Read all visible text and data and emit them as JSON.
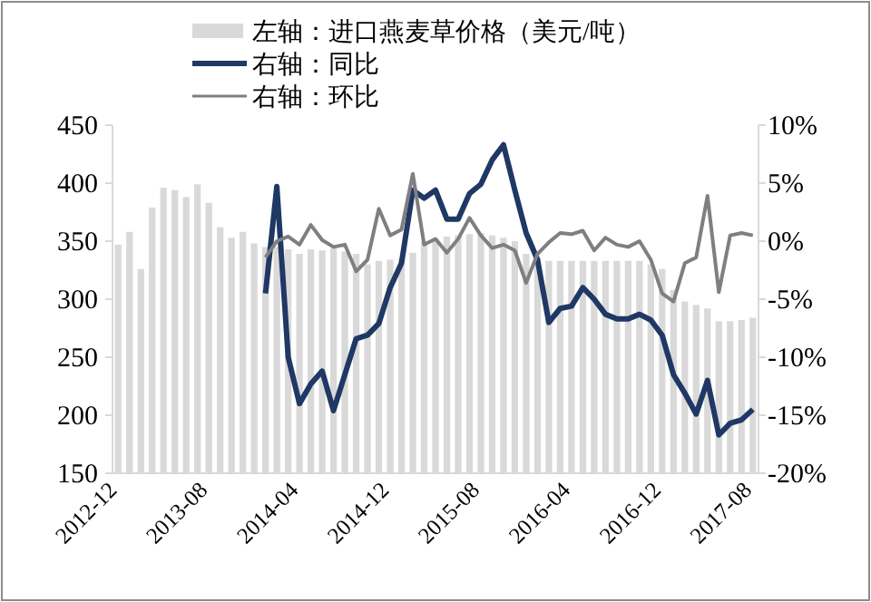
{
  "chart_data": {
    "type": "bar",
    "categories": [
      "2012-12",
      null,
      null,
      null,
      null,
      null,
      null,
      null,
      "2013-08",
      null,
      null,
      null,
      null,
      null,
      null,
      null,
      "2014-04",
      null,
      null,
      null,
      null,
      null,
      null,
      null,
      "2014-12",
      null,
      null,
      null,
      null,
      null,
      null,
      null,
      "2015-08",
      null,
      null,
      null,
      null,
      null,
      null,
      null,
      "2016-04",
      null,
      null,
      null,
      null,
      null,
      null,
      null,
      "2016-12",
      null,
      null,
      null,
      null,
      null,
      null,
      null,
      "2017-08"
    ],
    "series": [
      {
        "name": "左轴：进口燕麦草价格（美元/吨）",
        "color": "#d9d9d9",
        "values": [
          347,
          358,
          326,
          379,
          396,
          394,
          388,
          399,
          383,
          362,
          353,
          358,
          348,
          345,
          345,
          343,
          339,
          343,
          342,
          344,
          341,
          339,
          330,
          333,
          334,
          335,
          340,
          350,
          352,
          354,
          355,
          356,
          357,
          355,
          353,
          350,
          339,
          336,
          333,
          333,
          333,
          333,
          333,
          333,
          333,
          333,
          333,
          330,
          326,
          308,
          298,
          295,
          292,
          281,
          281,
          282,
          284
        ]
      },
      {
        "name": "右轴：同比",
        "type": "line",
        "axis": "y2",
        "color": "#1f3864",
        "values": [
          null,
          null,
          null,
          null,
          null,
          null,
          null,
          null,
          null,
          null,
          null,
          null,
          null,
          -4.5,
          4.7,
          -10,
          -14,
          -12.3,
          -11.2,
          -14.6,
          -11.5,
          -8.4,
          -8.1,
          -7.1,
          -4,
          -1.9,
          4.4,
          3.7,
          4.4,
          1.9,
          1.9,
          4.1,
          4.9,
          7,
          8.3,
          4.4,
          0.7,
          -1.6,
          -7,
          -5.8,
          -5.6,
          -4,
          -5,
          -6.3,
          -6.7,
          -6.7,
          -6.3,
          -6.8,
          -8.1,
          -11.5,
          -13.1,
          -14.9,
          -12,
          -16.7,
          -15.7,
          -15.4,
          -14.5
        ]
      },
      {
        "name": "右轴：环比",
        "type": "line",
        "axis": "y2",
        "color": "#7f7f7f",
        "values": [
          null,
          null,
          null,
          null,
          null,
          null,
          null,
          null,
          null,
          null,
          null,
          null,
          null,
          -1.4,
          0,
          0.4,
          -0.3,
          1.4,
          0.1,
          -0.5,
          -0.3,
          -2.6,
          -1.6,
          2.8,
          0.5,
          1,
          5.8,
          -0.3,
          0.2,
          -1,
          0.2,
          2,
          0.5,
          -0.6,
          -0.3,
          -0.8,
          -3.6,
          -1.1,
          -0.1,
          0.7,
          0.6,
          0.9,
          -0.8,
          0.3,
          -0.3,
          -0.5,
          0,
          -1.6,
          -4.5,
          -5.2,
          -1.9,
          -1.4,
          3.9,
          -4.4,
          0.5,
          0.7,
          0.5
        ]
      }
    ],
    "ylim": [
      150,
      450
    ],
    "yticks": [
      150,
      200,
      250,
      300,
      350,
      400,
      450
    ],
    "y2lim": [
      -20,
      10
    ],
    "y2ticks": [
      {
        "value": -20,
        "label": "-20%"
      },
      {
        "value": -15,
        "label": "-15%"
      },
      {
        "value": -10,
        "label": "-10%"
      },
      {
        "value": -5,
        "label": "-5%"
      },
      {
        "value": 0,
        "label": "0%"
      },
      {
        "value": 5,
        "label": "5%"
      },
      {
        "value": 10,
        "label": "10%"
      }
    ],
    "legend": "top",
    "grid": false
  }
}
